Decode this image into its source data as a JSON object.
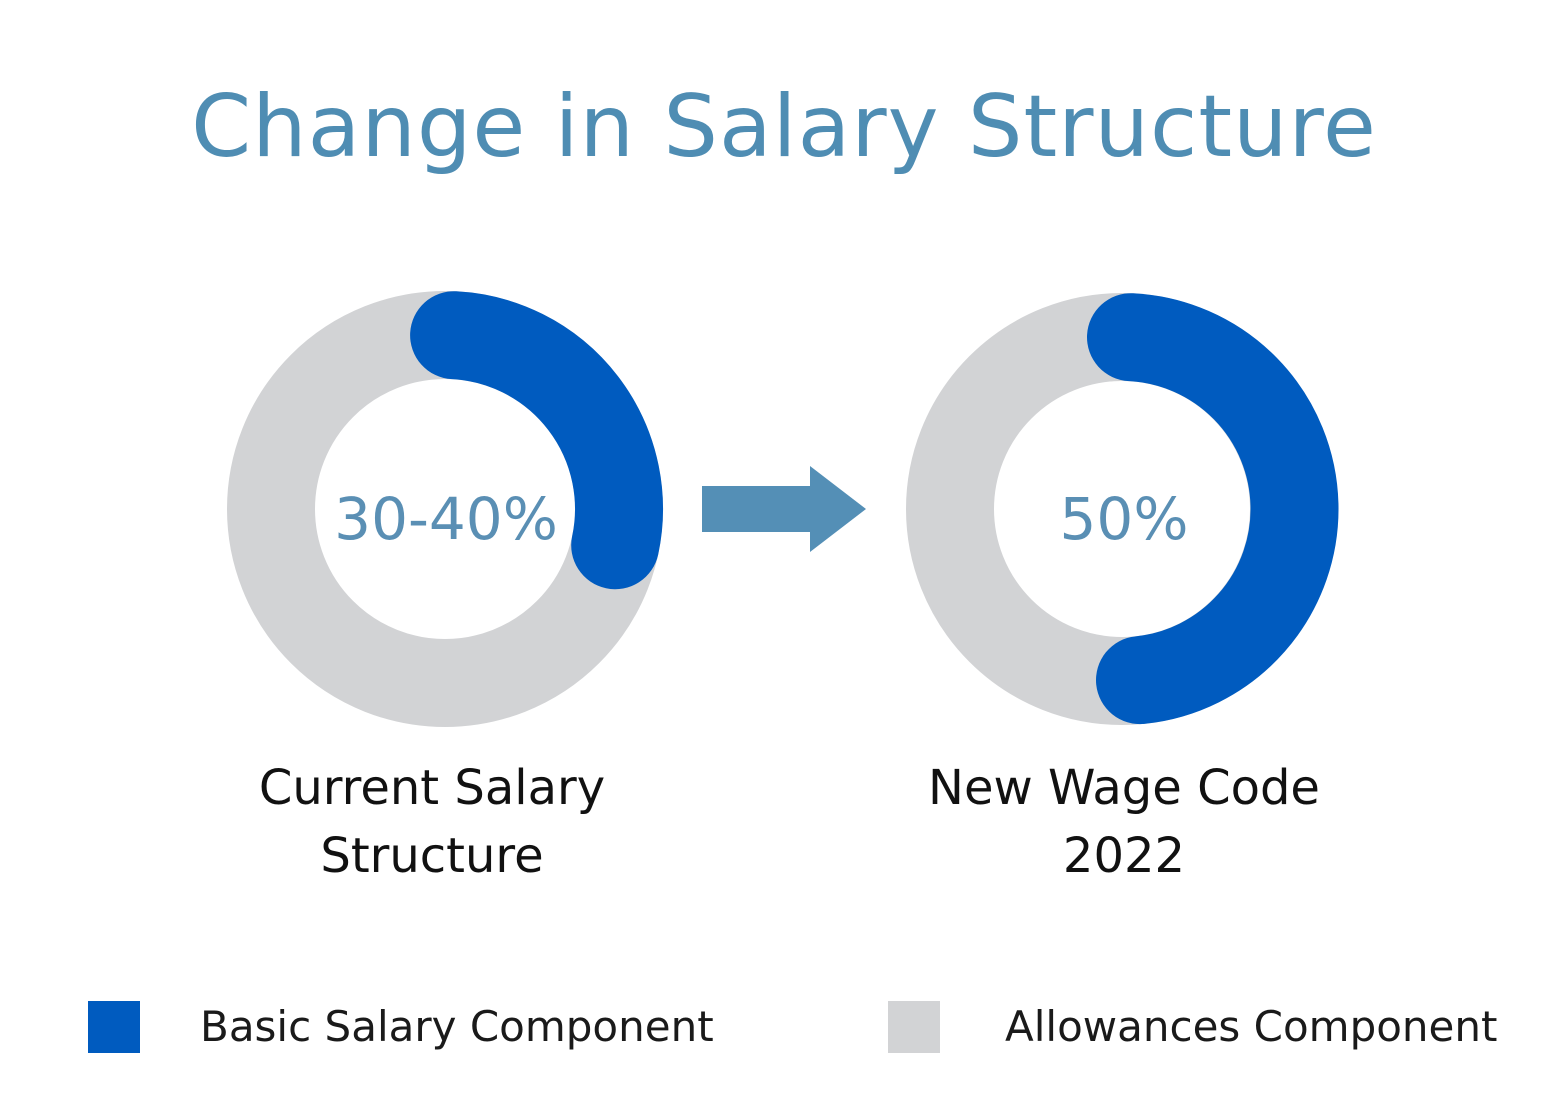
{
  "colors": {
    "title": "#4f8db3",
    "basic": "#005bbf",
    "allowances": "#d2d3d5",
    "arrow": "#548fb6",
    "center_text": "#5a8fb4"
  },
  "chart_data": {
    "type": "pie",
    "title": "Change in Salary Structure",
    "legend": [
      "Basic Salary Component",
      "Allowances Component"
    ],
    "legend_position": "bottom",
    "charts": [
      {
        "caption_line1": "Current Salary",
        "caption_line2": "Structure",
        "center_label": "30-40%",
        "basic_fraction": 0.3,
        "allowances_fraction": 0.7
      },
      {
        "caption_line1": "New Wage Code",
        "caption_line2": "2022",
        "center_label": "50%",
        "basic_fraction": 0.5,
        "allowances_fraction": 0.5
      }
    ]
  },
  "transition_icon": "right-arrow-icon"
}
